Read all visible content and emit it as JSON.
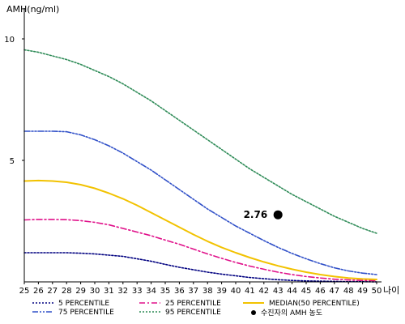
{
  "chart_data": {
    "type": "line",
    "ylabel": "AMH(ng/ml)",
    "xlabel": "나이",
    "xlim": [
      25,
      50
    ],
    "ylim": [
      0,
      11
    ],
    "x": [
      25,
      26,
      27,
      28,
      29,
      30,
      31,
      32,
      33,
      34,
      35,
      36,
      37,
      38,
      39,
      40,
      41,
      42,
      43,
      44,
      45,
      46,
      47,
      48,
      49,
      50
    ],
    "x_ticks": [
      "25",
      "26",
      "27",
      "28",
      "29",
      "30",
      "31",
      "32",
      "33",
      "34",
      "35",
      "36",
      "37",
      "38",
      "39",
      "40",
      "41",
      "42",
      "43",
      "44",
      "45",
      "46",
      "47",
      "48",
      "49",
      "50"
    ],
    "y_ticks": [
      {
        "value": 5,
        "label": "5"
      },
      {
        "value": 10,
        "label": "10"
      }
    ],
    "series": [
      {
        "name": "5 PERCENTILE",
        "color": "#000080",
        "dash": "dotted",
        "values": [
          1.2,
          1.2,
          1.2,
          1.2,
          1.18,
          1.15,
          1.1,
          1.05,
          0.95,
          0.85,
          0.72,
          0.6,
          0.5,
          0.4,
          0.32,
          0.25,
          0.18,
          0.13,
          0.09,
          0.06,
          0.04,
          0.03,
          0.02,
          0.01,
          0.01,
          0.0
        ]
      },
      {
        "name": "25 PERCENTILE",
        "color": "#e0108a",
        "dash": "dashdot",
        "values": [
          2.55,
          2.57,
          2.57,
          2.56,
          2.52,
          2.45,
          2.35,
          2.2,
          2.05,
          1.9,
          1.72,
          1.55,
          1.35,
          1.15,
          0.97,
          0.8,
          0.65,
          0.52,
          0.4,
          0.3,
          0.22,
          0.16,
          0.11,
          0.08,
          0.06,
          0.05
        ]
      },
      {
        "name": "MEDIAN(50 PERCENTILE)",
        "color": "#f2c200",
        "dash": "solid",
        "values": [
          4.15,
          4.17,
          4.15,
          4.1,
          4.0,
          3.85,
          3.65,
          3.42,
          3.15,
          2.85,
          2.55,
          2.25,
          1.95,
          1.67,
          1.42,
          1.2,
          1.0,
          0.82,
          0.66,
          0.52,
          0.4,
          0.3,
          0.22,
          0.16,
          0.12,
          0.1
        ]
      },
      {
        "name": "75 PERCENTILE",
        "color": "#3050c8",
        "dash": "dashdotdot",
        "values": [
          6.2,
          6.2,
          6.2,
          6.18,
          6.05,
          5.85,
          5.6,
          5.3,
          4.95,
          4.6,
          4.2,
          3.8,
          3.4,
          3.0,
          2.65,
          2.3,
          2.0,
          1.7,
          1.42,
          1.17,
          0.95,
          0.75,
          0.58,
          0.45,
          0.36,
          0.3
        ]
      },
      {
        "name": "95 PERCENTILE",
        "color": "#2e8b57",
        "dash": "dotted",
        "values": [
          9.55,
          9.45,
          9.3,
          9.15,
          8.95,
          8.7,
          8.45,
          8.15,
          7.8,
          7.45,
          7.05,
          6.65,
          6.25,
          5.85,
          5.45,
          5.05,
          4.65,
          4.3,
          3.95,
          3.6,
          3.3,
          3.0,
          2.7,
          2.45,
          2.2,
          2.0
        ]
      }
    ],
    "marker": {
      "label": "수진자의 AMH 농도",
      "x": 43,
      "y": 2.76,
      "value_label": "2.76",
      "color": "#000000"
    },
    "legend_position": "bottom"
  }
}
